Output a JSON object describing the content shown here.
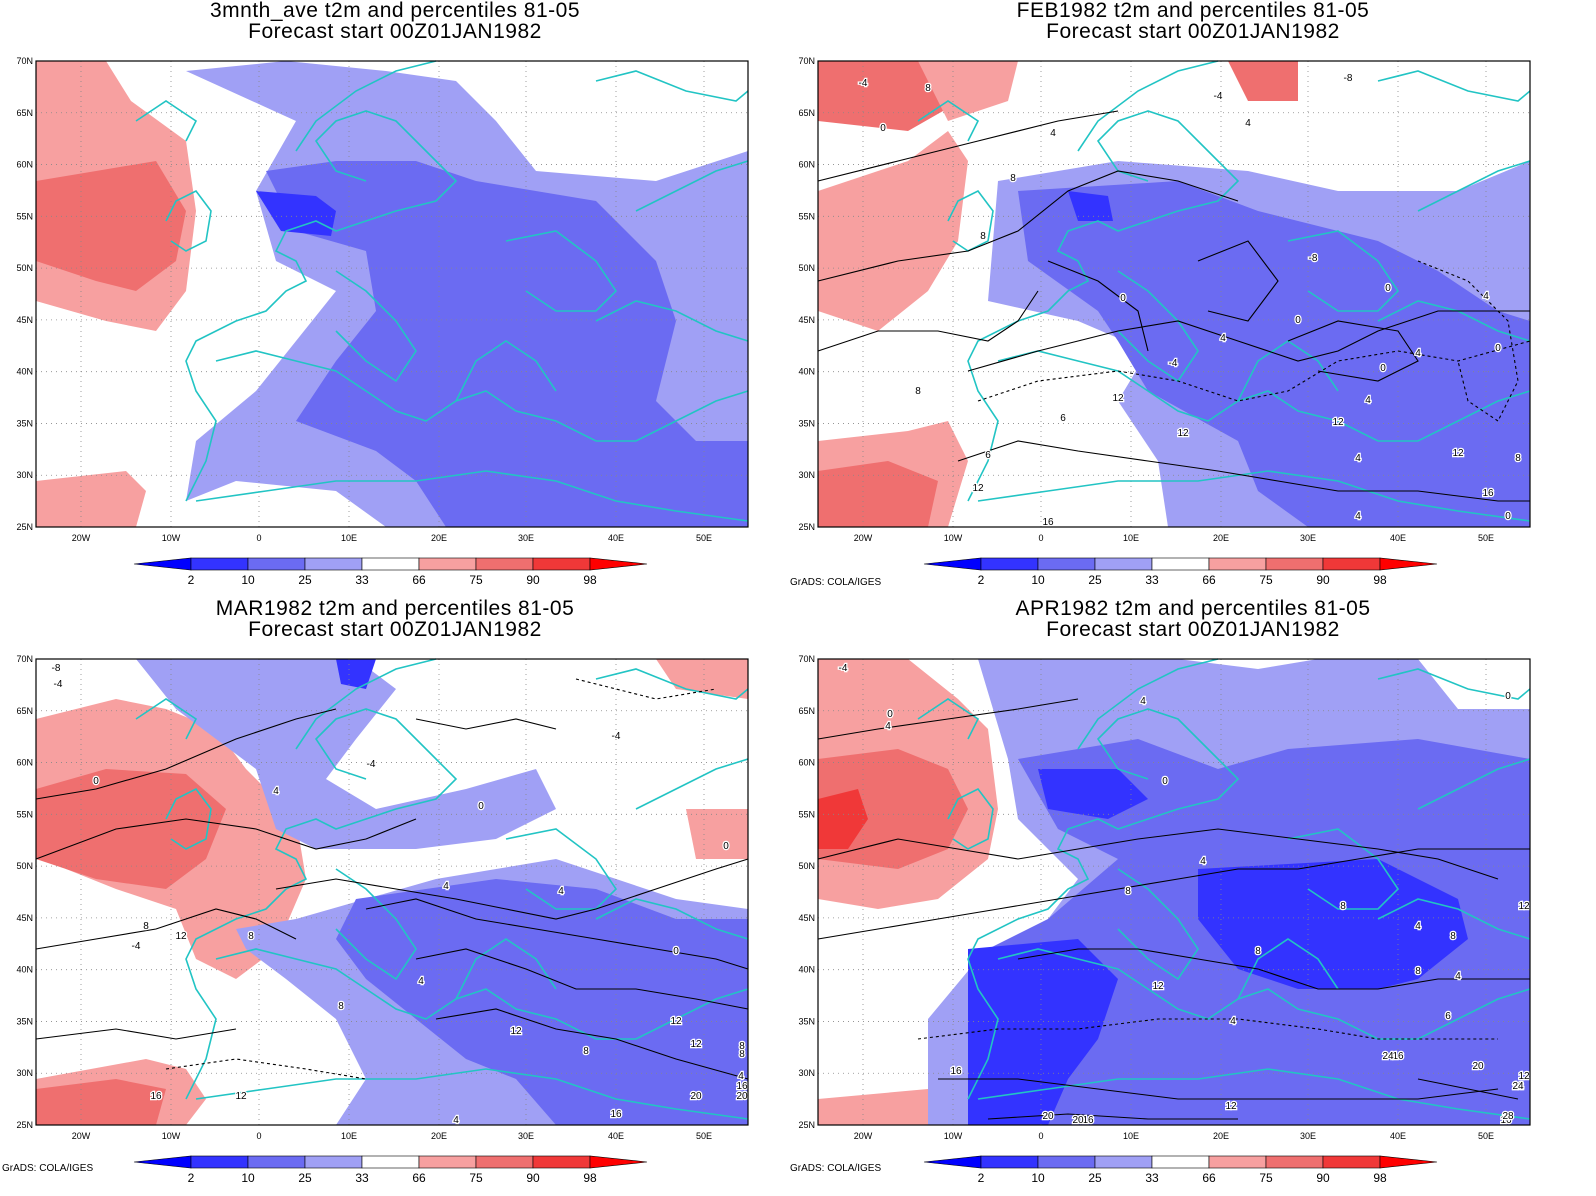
{
  "panels": [
    {
      "title": "3mnth_ave t2m and percentiles 81-05",
      "subtitle": "Forecast start 00Z01JAN1982",
      "has_contours": false,
      "credit": ""
    },
    {
      "title": "FEB1982 t2m and percentiles 81-05",
      "subtitle": "Forecast start 00Z01JAN1982",
      "has_contours": true,
      "credit": "GrADS: COLA/IGES"
    },
    {
      "title": "MAR1982 t2m and percentiles 81-05",
      "subtitle": "Forecast start 00Z01JAN1982",
      "has_contours": true,
      "credit": "GrADS: COLA/IGES"
    },
    {
      "title": "APR1982 t2m and percentiles 81-05",
      "subtitle": "Forecast start 00Z01JAN1982",
      "has_contours": true,
      "credit": "GrADS: COLA/IGES"
    }
  ],
  "map": {
    "lat_labels": [
      "70N",
      "65N",
      "60N",
      "55N",
      "50N",
      "45N",
      "40N",
      "35N",
      "30N",
      "25N"
    ],
    "lon_labels": [
      "20W",
      "10W",
      "0",
      "10E",
      "20E",
      "30E",
      "40E",
      "50E"
    ]
  },
  "colorbar": {
    "labels": [
      "2",
      "10",
      "25",
      "33",
      "66",
      "75",
      "90",
      "98"
    ],
    "colors": {
      "below_2": "#0000ff",
      "2_10": "#3333ff",
      "10_25": "#6b6bf2",
      "25_33": "#a0a0f5",
      "33_66": "#ffffff",
      "66_75": "#f7a0a0",
      "75_90": "#ef6f6f",
      "90_98": "#f03838",
      "above_98": "#ff0000"
    }
  },
  "contour_labels": {
    "feb": [
      "8",
      "-4",
      "0",
      "4",
      "8",
      "-8",
      "-4",
      "4",
      "8",
      "0",
      "-8",
      "0",
      "4",
      "0",
      "4",
      "0",
      "4",
      "-4",
      "0",
      "8",
      "12",
      "4",
      "12",
      "6",
      "12",
      "6",
      "4",
      "12",
      "8",
      "0",
      "12",
      "16",
      "4",
      "16"
    ],
    "mar": [
      "-8",
      "-4",
      "-4",
      "0",
      "4",
      "-4",
      "0",
      "-4",
      "8",
      "0",
      "4",
      "4",
      "12",
      "8",
      "8",
      "4",
      "0",
      "12",
      "12",
      "8",
      "8",
      "12",
      "4",
      "16",
      "12",
      "16",
      "20",
      "8",
      "20",
      "16",
      "4"
    ],
    "apr": [
      "-4",
      "0",
      "4",
      "4",
      "0",
      "0",
      "4",
      "4",
      "8",
      "8",
      "4",
      "8",
      "12",
      "12",
      "8",
      "8",
      "4",
      "6",
      "12",
      "16",
      "12",
      "16",
      "16",
      "20",
      "20",
      "24",
      "20",
      "16",
      "24",
      "28",
      "12"
    ]
  },
  "colors": {
    "coast": "#22c4c4",
    "grid": "#888888"
  }
}
